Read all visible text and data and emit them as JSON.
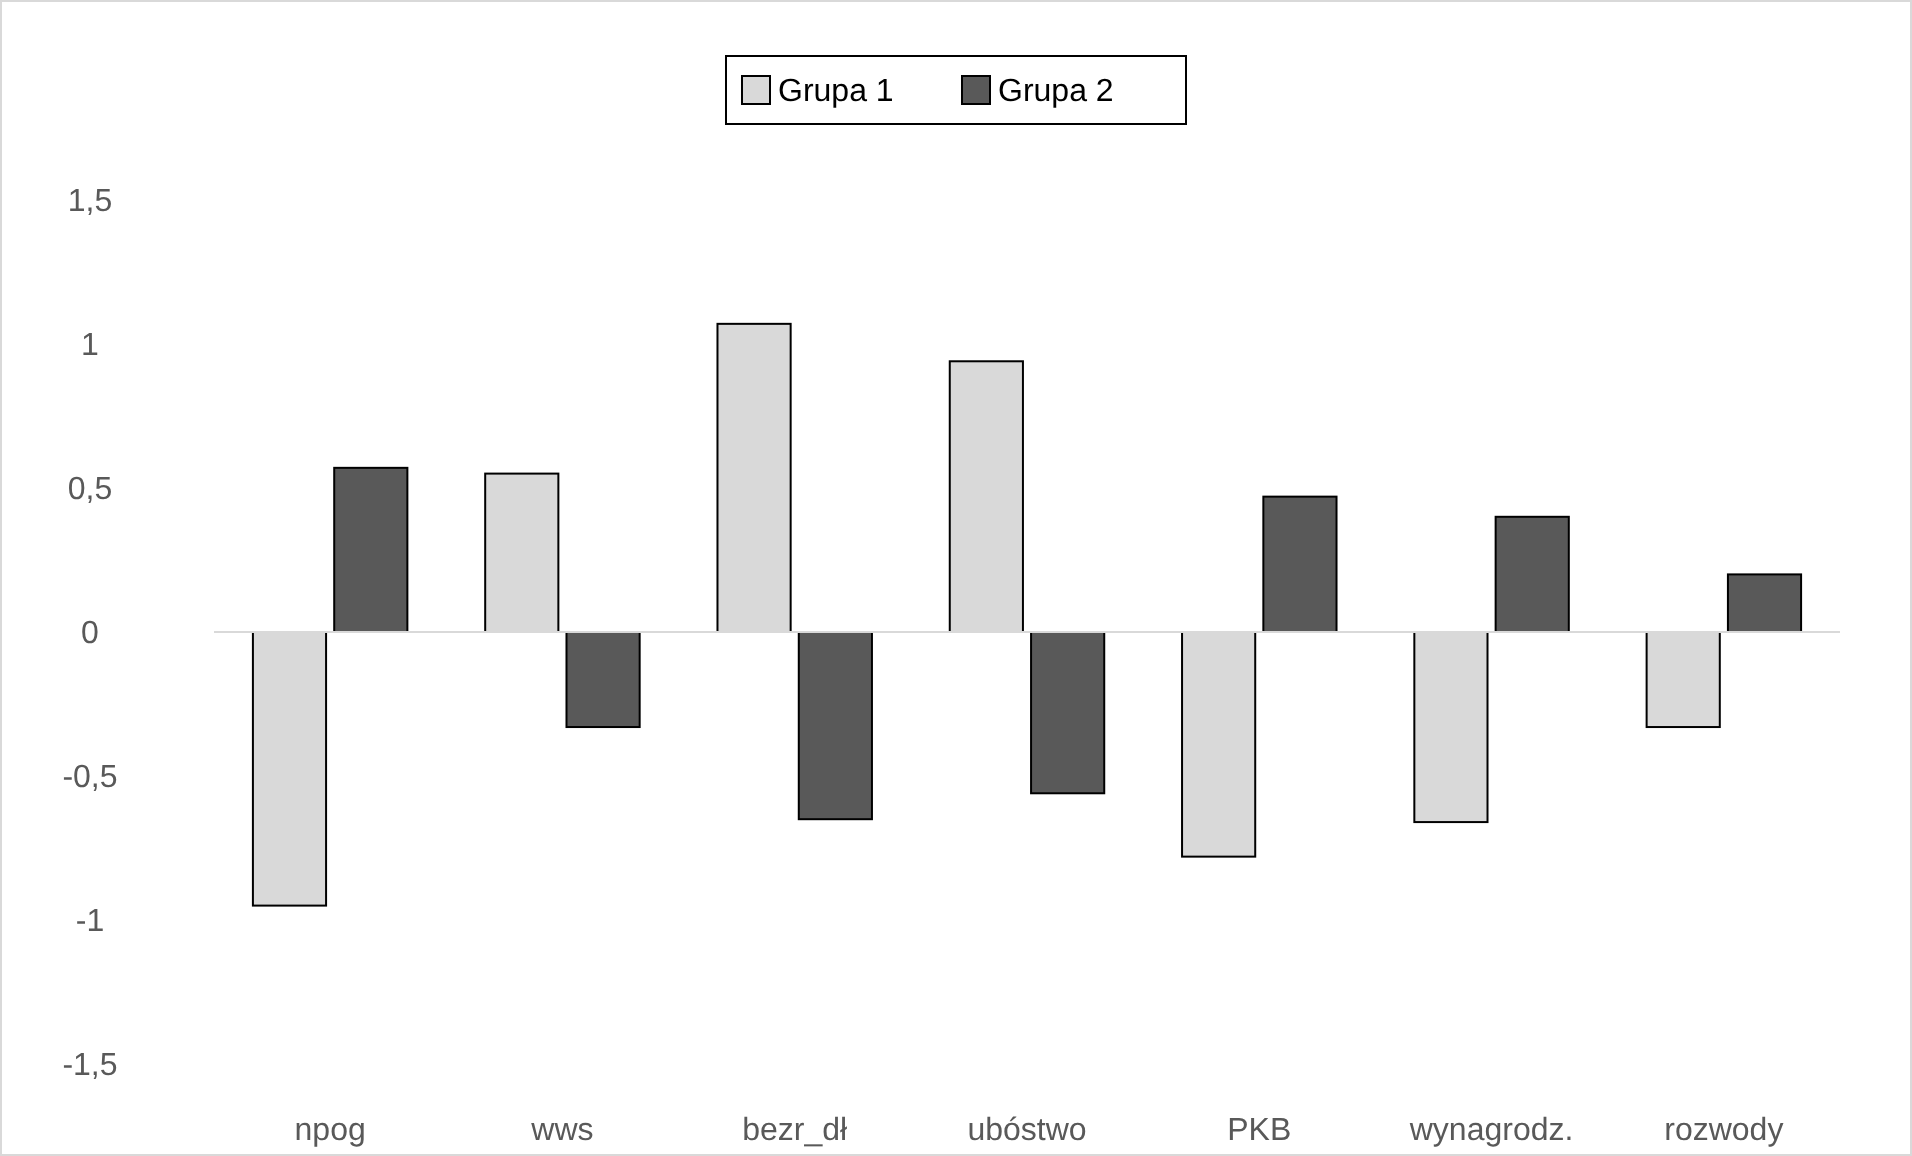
{
  "chart_data": {
    "type": "bar",
    "categories": [
      "npog",
      "wws",
      "bezr_dł",
      "ubóstwo",
      "PKB",
      "wynagrodz.",
      "rozwody"
    ],
    "series": [
      {
        "name": "Grupa 1",
        "color": "#d9d9d9",
        "values": [
          -0.95,
          0.55,
          1.07,
          0.94,
          -0.78,
          -0.66,
          -0.33
        ]
      },
      {
        "name": "Grupa 2",
        "color": "#595959",
        "values": [
          0.57,
          -0.33,
          -0.65,
          -0.56,
          0.47,
          0.4,
          0.2
        ]
      }
    ],
    "ylim": [
      -1.5,
      1.5
    ],
    "yticks": [
      {
        "value": -1.5,
        "label": "-1,5"
      },
      -1,
      {
        "value": -0.5,
        "label": "-0,5"
      },
      0,
      {
        "value": 0.5,
        "label": "0,5"
      },
      1,
      {
        "value": 1.5,
        "label": "1,5"
      }
    ],
    "legend": "top"
  }
}
